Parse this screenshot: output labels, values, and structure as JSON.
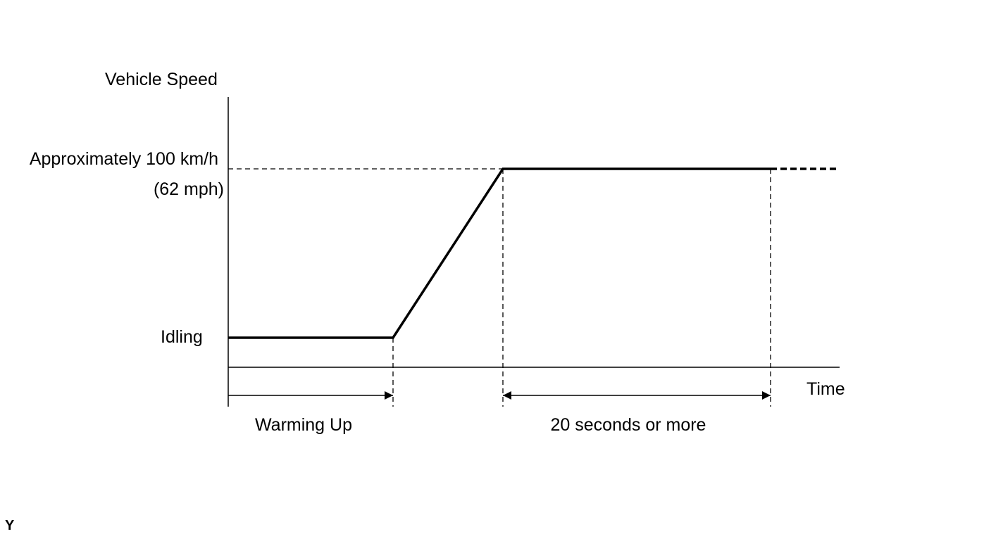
{
  "diagram": {
    "y_axis_label": "Vehicle Speed",
    "x_axis_label": "Time",
    "levels": {
      "high": "Approximately 100 km/h",
      "high_alt": "(62 mph)",
      "low": "Idling"
    },
    "intervals": {
      "warming": "Warming Up",
      "hold": "20 seconds or more"
    },
    "figure_code": "Y"
  }
}
